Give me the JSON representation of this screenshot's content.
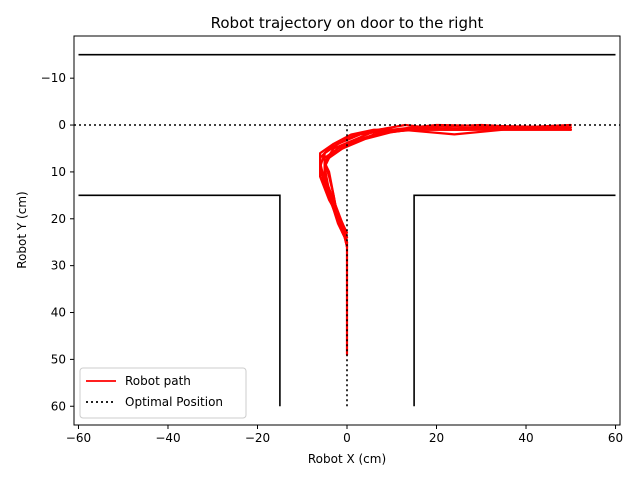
{
  "chart_data": {
    "type": "line",
    "title": "Robot trajectory on door to the right",
    "xlabel": "Robot X (cm)",
    "ylabel": "Robot Y (cm)",
    "xlim": [
      -61,
      61
    ],
    "ylim": [
      64,
      -19
    ],
    "y_inverted": true,
    "grid": false,
    "legend": "lower-left",
    "x_ticks": [
      -60,
      -40,
      -20,
      0,
      20,
      40,
      60
    ],
    "x_tick_labels": [
      "−60",
      "−40",
      "−20",
      "0",
      "20",
      "40",
      "60"
    ],
    "y_ticks": [
      -10,
      0,
      10,
      20,
      30,
      40,
      50,
      60
    ],
    "y_tick_labels": [
      "−10",
      "0",
      "10",
      "20",
      "30",
      "40",
      "50",
      "60"
    ],
    "walls": [
      {
        "color": "#000000",
        "points": [
          [
            -60,
            -15
          ],
          [
            60,
            -15
          ]
        ]
      },
      {
        "color": "#000000",
        "points": [
          [
            -60,
            15
          ],
          [
            -15,
            15
          ],
          [
            -15,
            60
          ]
        ]
      },
      {
        "color": "#000000",
        "points": [
          [
            60,
            15
          ],
          [
            15,
            15
          ],
          [
            15,
            60
          ]
        ]
      }
    ],
    "series": [
      {
        "name": "Robot path",
        "color": "#ff0000",
        "style": "solid",
        "paths": [
          [
            [
              0,
              49
            ],
            [
              0,
              30
            ],
            [
              0,
              25
            ],
            [
              -1,
              23
            ],
            [
              -2,
              20
            ],
            [
              -3,
              15
            ],
            [
              -4,
              10
            ],
            [
              -5,
              8
            ],
            [
              -5,
              6
            ],
            [
              -2,
              4
            ],
            [
              2,
              2
            ],
            [
              8,
              1
            ],
            [
              20,
              1
            ],
            [
              50,
              1
            ]
          ],
          [
            [
              0,
              26
            ],
            [
              -1,
              22
            ],
            [
              -3,
              17
            ],
            [
              -5,
              12
            ],
            [
              -6,
              8
            ],
            [
              -6,
              6
            ],
            [
              -3,
              4
            ],
            [
              1,
              2
            ],
            [
              6,
              1
            ],
            [
              15,
              1
            ],
            [
              30,
              0.5
            ],
            [
              50,
              0.5
            ]
          ],
          [
            [
              0,
              24
            ],
            [
              -1,
              21
            ],
            [
              -4,
              16
            ],
            [
              -6,
              11
            ],
            [
              -6,
              7
            ],
            [
              -4,
              5
            ],
            [
              0,
              3
            ],
            [
              4,
              1.5
            ],
            [
              12,
              1
            ],
            [
              24,
              2
            ],
            [
              35,
              1
            ],
            [
              50,
              1
            ]
          ],
          [
            [
              0,
              25
            ],
            [
              -2,
              21
            ],
            [
              -4,
              15
            ],
            [
              -5,
              10
            ],
            [
              -5,
              7
            ],
            [
              -2,
              5
            ],
            [
              3,
              3
            ],
            [
              8,
              1.5
            ],
            [
              16,
              1
            ],
            [
              28,
              1
            ],
            [
              50,
              0
            ]
          ],
          [
            [
              0,
              23
            ],
            [
              -2,
              19
            ],
            [
              -4,
              14
            ],
            [
              -5,
              9
            ],
            [
              -4,
              7
            ],
            [
              -1,
              5
            ],
            [
              4,
              3
            ],
            [
              10,
              1.5
            ],
            [
              18,
              0.5
            ],
            [
              30,
              0
            ],
            [
              50,
              1
            ]
          ],
          [
            [
              0,
              25
            ],
            [
              -1,
              21
            ],
            [
              -3,
              16
            ],
            [
              -5,
              11
            ],
            [
              -5,
              8
            ],
            [
              -3,
              6
            ],
            [
              1,
              4
            ],
            [
              6,
              2
            ],
            [
              14,
              1
            ],
            [
              25,
              1
            ],
            [
              50,
              0.5
            ]
          ],
          [
            [
              0,
              24
            ],
            [
              -2,
              20
            ],
            [
              -3,
              15
            ],
            [
              -4,
              11
            ],
            [
              -5,
              8
            ],
            [
              -3,
              5
            ],
            [
              2,
              3
            ],
            [
              7,
              1
            ],
            [
              13,
              0
            ],
            [
              22,
              1
            ],
            [
              50,
              1
            ]
          ],
          [
            [
              0,
              26
            ],
            [
              -1,
              22
            ],
            [
              -3,
              18
            ],
            [
              -5,
              13
            ],
            [
              -6,
              9
            ],
            [
              -5,
              6
            ],
            [
              -2,
              4
            ],
            [
              3,
              2
            ],
            [
              10,
              1
            ],
            [
              20,
              0
            ],
            [
              50,
              0.5
            ]
          ]
        ]
      },
      {
        "name": "Optimal Position",
        "color": "#000000",
        "style": "dotted",
        "paths": [
          [
            [
              0,
              60
            ],
            [
              0,
              0
            ]
          ],
          [
            [
              -61,
              0
            ],
            [
              61,
              0
            ]
          ]
        ]
      }
    ]
  }
}
